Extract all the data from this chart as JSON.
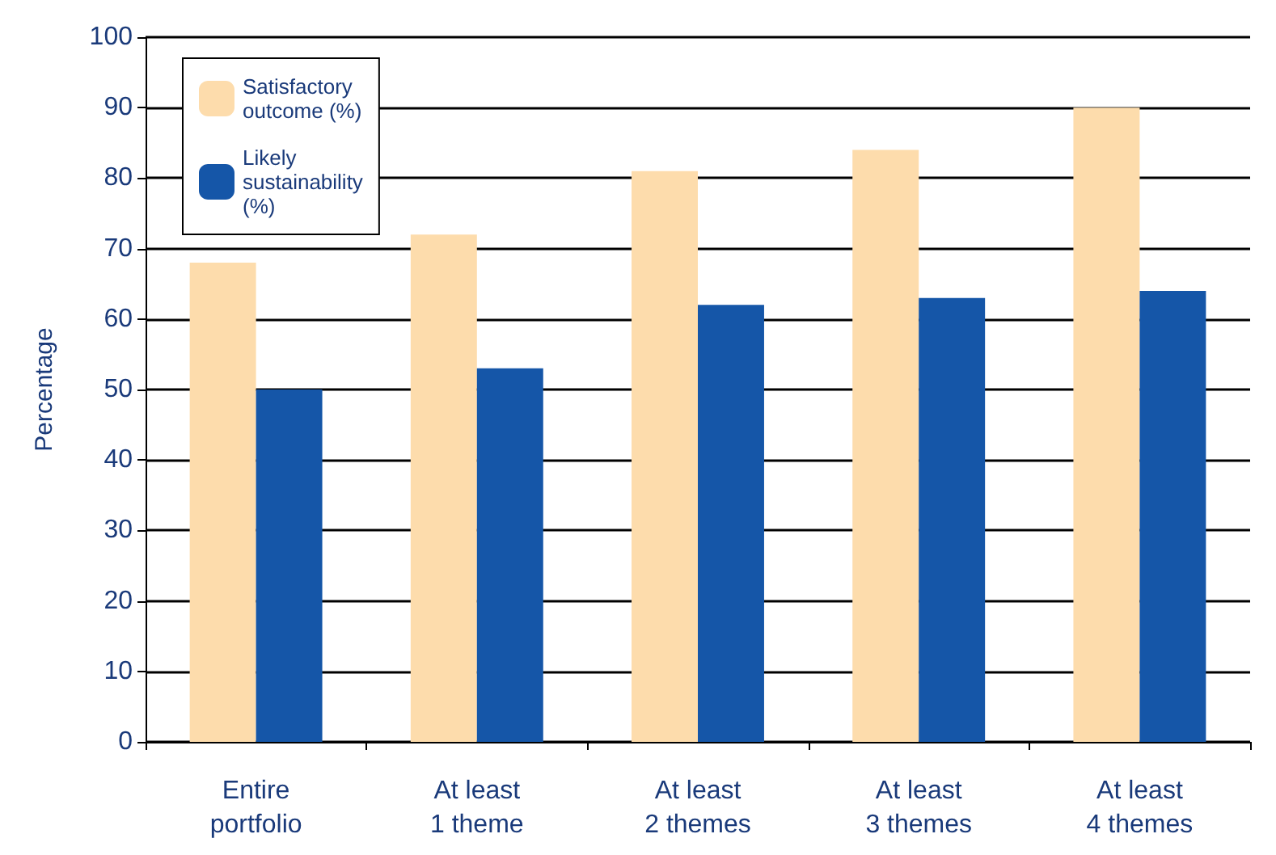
{
  "chart_data": {
    "type": "bar",
    "ylabel": "Percentage",
    "categories": [
      "Entire\nportfolio",
      "At least\n1 theme",
      "At least\n2 themes",
      "At least\n3 themes",
      "At least\n4 themes"
    ],
    "series": [
      {
        "name": "Satisfactory\noutcome (%)",
        "color": "#fddcac",
        "values": [
          68,
          72,
          81,
          84,
          90
        ]
      },
      {
        "name": "Likely\nsustainability\n(%)",
        "color": "#1556a8",
        "values": [
          50,
          53,
          62,
          63,
          64
        ]
      }
    ],
    "ylim": [
      0,
      100
    ],
    "yticks": [
      0,
      10,
      20,
      30,
      40,
      50,
      60,
      70,
      80,
      90,
      100
    ],
    "grid": "y",
    "legend": "top left"
  }
}
